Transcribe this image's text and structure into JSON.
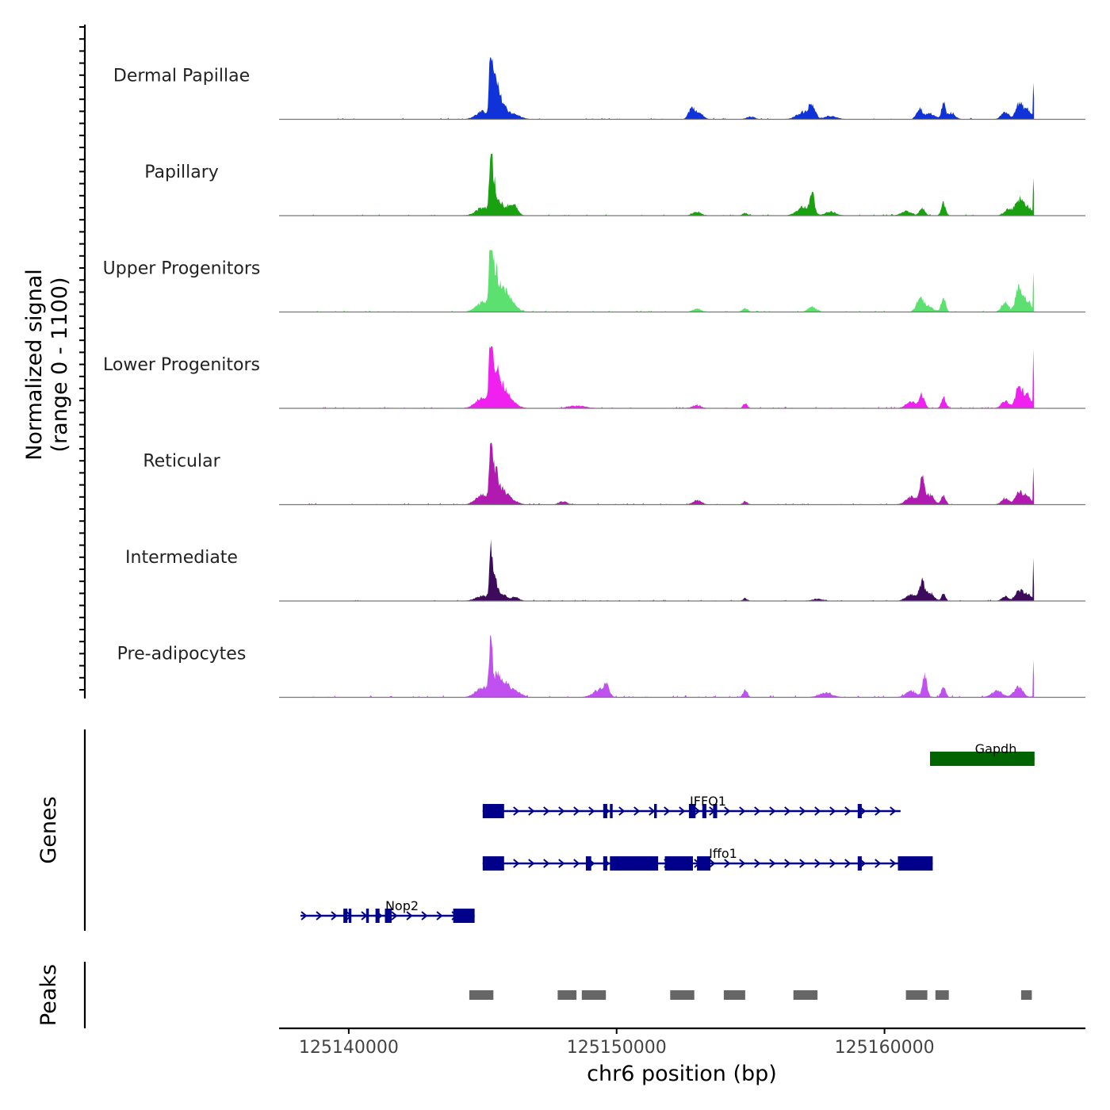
{
  "chart_data": {
    "type": "area",
    "x_axis": {
      "label": "chr6 position (bp)",
      "range": [
        125137400,
        125167500
      ],
      "ticks": [
        125140000,
        125150000,
        125160000
      ],
      "tick_labels": [
        "125140000",
        "125150000",
        "125160000"
      ]
    },
    "coverage": {
      "ylabel_line1": "Normalized signal",
      "ylabel_line2": "(range 0 - 1100)",
      "range": [
        0,
        1100
      ],
      "tracks": [
        {
          "name": "Dermal Papillae",
          "color": "#1033d9",
          "noise": 0.7,
          "peaks": [
            [
              125145000,
              0.12,
              250
            ],
            [
              125145300,
              1.0,
              55
            ],
            [
              125145450,
              0.45,
              90
            ],
            [
              125145600,
              0.25,
              140
            ],
            [
              125145800,
              0.14,
              180
            ],
            [
              125146200,
              0.07,
              220
            ],
            [
              125152800,
              0.18,
              120
            ],
            [
              125153100,
              0.09,
              140
            ],
            [
              125155000,
              0.04,
              150
            ],
            [
              125157000,
              0.12,
              250
            ],
            [
              125157300,
              0.2,
              110
            ],
            [
              125158000,
              0.05,
              220
            ],
            [
              125161300,
              0.17,
              110
            ],
            [
              125161700,
              0.09,
              180
            ],
            [
              125162200,
              0.26,
              70
            ],
            [
              125162500,
              0.1,
              140
            ],
            [
              125164500,
              0.12,
              140
            ],
            [
              125165000,
              0.22,
              120
            ],
            [
              125165300,
              0.16,
              160
            ],
            [
              125165560,
              0.82,
              14
            ]
          ]
        },
        {
          "name": "Papillary",
          "color": "#1aa112",
          "noise": 0.7,
          "peaks": [
            [
              125145000,
              0.12,
              250
            ],
            [
              125145300,
              1.0,
              50
            ],
            [
              125145400,
              0.45,
              90
            ],
            [
              125145600,
              0.2,
              150
            ],
            [
              125146000,
              0.14,
              200
            ],
            [
              125146200,
              0.08,
              120
            ],
            [
              125153000,
              0.06,
              150
            ],
            [
              125154800,
              0.04,
              100
            ],
            [
              125157000,
              0.14,
              250
            ],
            [
              125157300,
              0.3,
              80
            ],
            [
              125158000,
              0.06,
              200
            ],
            [
              125160800,
              0.07,
              180
            ],
            [
              125161400,
              0.12,
              100
            ],
            [
              125162200,
              0.2,
              80
            ],
            [
              125164600,
              0.1,
              140
            ],
            [
              125165000,
              0.24,
              140
            ],
            [
              125165300,
              0.15,
              160
            ],
            [
              125165560,
              0.88,
              14
            ]
          ]
        },
        {
          "name": "Upper Progenitors",
          "color": "#5ce070",
          "noise": 0.9,
          "peaks": [
            [
              125145000,
              0.15,
              250
            ],
            [
              125145300,
              1.0,
              60
            ],
            [
              125145450,
              0.55,
              110
            ],
            [
              125145700,
              0.3,
              180
            ],
            [
              125146000,
              0.15,
              250
            ],
            [
              125153000,
              0.05,
              150
            ],
            [
              125154800,
              0.06,
              100
            ],
            [
              125157300,
              0.08,
              150
            ],
            [
              125161300,
              0.18,
              120
            ],
            [
              125161600,
              0.1,
              200
            ],
            [
              125162200,
              0.24,
              80
            ],
            [
              125164500,
              0.14,
              140
            ],
            [
              125165000,
              0.36,
              110
            ],
            [
              125165300,
              0.2,
              140
            ],
            [
              125165560,
              0.95,
              14
            ]
          ]
        },
        {
          "name": "Lower Progenitors",
          "color": "#f020f0",
          "noise": 0.9,
          "peaks": [
            [
              125145000,
              0.18,
              250
            ],
            [
              125145300,
              1.0,
              60
            ],
            [
              125145450,
              0.55,
              110
            ],
            [
              125145700,
              0.3,
              180
            ],
            [
              125146000,
              0.12,
              250
            ],
            [
              125148500,
              0.04,
              300
            ],
            [
              125153000,
              0.05,
              150
            ],
            [
              125154800,
              0.07,
              80
            ],
            [
              125161000,
              0.1,
              200
            ],
            [
              125161400,
              0.2,
              100
            ],
            [
              125162200,
              0.18,
              80
            ],
            [
              125164500,
              0.12,
              140
            ],
            [
              125165000,
              0.3,
              120
            ],
            [
              125165300,
              0.22,
              160
            ],
            [
              125165560,
              1.0,
              14
            ]
          ]
        },
        {
          "name": "Reticular",
          "color": "#b01ab0",
          "noise": 0.8,
          "peaks": [
            [
              125145000,
              0.15,
              250
            ],
            [
              125145300,
              0.95,
              55
            ],
            [
              125145450,
              0.5,
              100
            ],
            [
              125145700,
              0.2,
              180
            ],
            [
              125146000,
              0.08,
              250
            ],
            [
              125148000,
              0.05,
              150
            ],
            [
              125153000,
              0.07,
              150
            ],
            [
              125154800,
              0.05,
              80
            ],
            [
              125161000,
              0.12,
              200
            ],
            [
              125161400,
              0.38,
              90
            ],
            [
              125161700,
              0.15,
              150
            ],
            [
              125162200,
              0.16,
              80
            ],
            [
              125164500,
              0.1,
              140
            ],
            [
              125165000,
              0.16,
              140
            ],
            [
              125165300,
              0.14,
              160
            ],
            [
              125165560,
              0.78,
              14
            ]
          ]
        },
        {
          "name": "Intermediate",
          "color": "#3e0a5c",
          "noise": 0.6,
          "peaks": [
            [
              125145000,
              0.08,
              250
            ],
            [
              125145300,
              0.95,
              50
            ],
            [
              125145450,
              0.3,
              90
            ],
            [
              125145700,
              0.12,
              180
            ],
            [
              125146200,
              0.06,
              150
            ],
            [
              125154800,
              0.04,
              80
            ],
            [
              125157500,
              0.03,
              200
            ],
            [
              125161000,
              0.1,
              200
            ],
            [
              125161400,
              0.3,
              90
            ],
            [
              125161700,
              0.13,
              140
            ],
            [
              125162200,
              0.13,
              70
            ],
            [
              125164500,
              0.07,
              120
            ],
            [
              125165000,
              0.14,
              140
            ],
            [
              125165300,
              0.12,
              160
            ],
            [
              125165560,
              0.75,
              14
            ]
          ]
        },
        {
          "name": "Pre-adipocytes",
          "color": "#c050f0",
          "noise": 1.4,
          "peaks": [
            [
              125145000,
              0.15,
              250
            ],
            [
              125145300,
              0.95,
              55
            ],
            [
              125145500,
              0.3,
              130
            ],
            [
              125145800,
              0.2,
              180
            ],
            [
              125146200,
              0.1,
              220
            ],
            [
              125149300,
              0.1,
              220
            ],
            [
              125149600,
              0.17,
              120
            ],
            [
              125154800,
              0.12,
              80
            ],
            [
              125157800,
              0.07,
              250
            ],
            [
              125161000,
              0.1,
              200
            ],
            [
              125161500,
              0.35,
              80
            ],
            [
              125162200,
              0.17,
              80
            ],
            [
              125164200,
              0.1,
              200
            ],
            [
              125165000,
              0.16,
              160
            ],
            [
              125165560,
              0.78,
              14
            ]
          ]
        }
      ]
    },
    "genes": {
      "label": "Genes",
      "items": [
        {
          "name": "Gapdh",
          "start": 125161700,
          "end": 125165600,
          "color": "#006400",
          "exons": [
            [
              125161700,
              125165600
            ]
          ]
        },
        {
          "name": "IFFO1",
          "start": 125145000,
          "end": 125160600,
          "color": "#00008b",
          "exons": [
            [
              125145000,
              125145800
            ],
            [
              125149500,
              125149650
            ],
            [
              125149750,
              125149850
            ],
            [
              125151400,
              125151500
            ],
            [
              125152700,
              125152950
            ],
            [
              125153200,
              125153350
            ],
            [
              125153600,
              125153750
            ],
            [
              125159000,
              125159150
            ]
          ]
        },
        {
          "name": "Iffo1",
          "start": 125145000,
          "end": 125161800,
          "color": "#00008b",
          "exons": [
            [
              125145000,
              125145800
            ],
            [
              125148850,
              125149050
            ],
            [
              125149500,
              125149650
            ],
            [
              125149750,
              125151550
            ],
            [
              125151800,
              125152850
            ],
            [
              125153000,
              125153500
            ],
            [
              125159000,
              125159150
            ],
            [
              125160500,
              125161800
            ]
          ]
        },
        {
          "name": "Nop2",
          "start": 125138200,
          "end": 125144700,
          "color": "#00008b",
          "exons": [
            [
              125139800,
              125139950
            ],
            [
              125140000,
              125140100
            ],
            [
              125140650,
              125140750
            ],
            [
              125141000,
              125141150
            ],
            [
              125141350,
              125141600
            ],
            [
              125143900,
              125144700
            ]
          ]
        }
      ]
    },
    "peaks": {
      "label": "Peaks",
      "color": "#666666",
      "regions": [
        [
          125144500,
          125145400
        ],
        [
          125147800,
          125148500
        ],
        [
          125148700,
          125149600
        ],
        [
          125152000,
          125152900
        ],
        [
          125154000,
          125154800
        ],
        [
          125156600,
          125157500
        ],
        [
          125160800,
          125161600
        ],
        [
          125161900,
          125162400
        ],
        [
          125165100,
          125165500
        ]
      ]
    }
  }
}
